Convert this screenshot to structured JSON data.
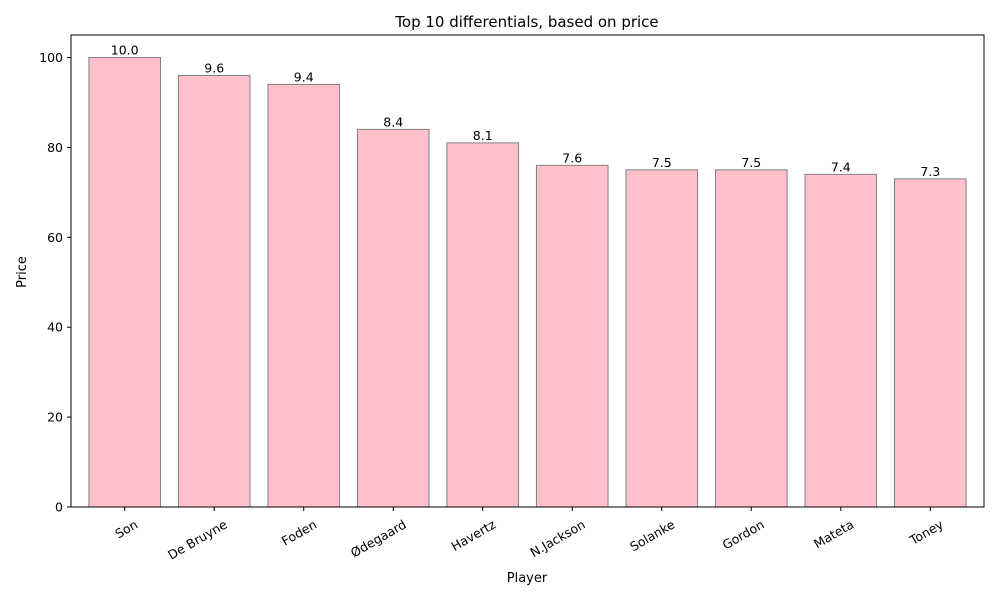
{
  "chart_data": {
    "type": "bar",
    "title": "Top 10 differentials, based on price",
    "xlabel": "Player",
    "ylabel": "Price",
    "categories": [
      "Son",
      "De Bruyne",
      "Foden",
      "Ødegaard",
      "Havertz",
      "N.Jackson",
      "Solanke",
      "Gordon",
      "Mateta",
      "Toney"
    ],
    "values": [
      100,
      96,
      94,
      84,
      81,
      76,
      75,
      75,
      74,
      73
    ],
    "data_labels": [
      "10.0",
      "9.6",
      "9.4",
      "8.4",
      "8.1",
      "7.6",
      "7.5",
      "7.5",
      "7.4",
      "7.3"
    ],
    "ylim": [
      0,
      105
    ],
    "yticks": [
      0,
      20,
      40,
      60,
      80,
      100
    ],
    "x_tick_rotation_deg": -30,
    "grid": false,
    "legend": "none",
    "colors": {
      "bar_fill": "#ffc0cb",
      "bar_edge": "#808080",
      "axis": "#000000"
    }
  }
}
